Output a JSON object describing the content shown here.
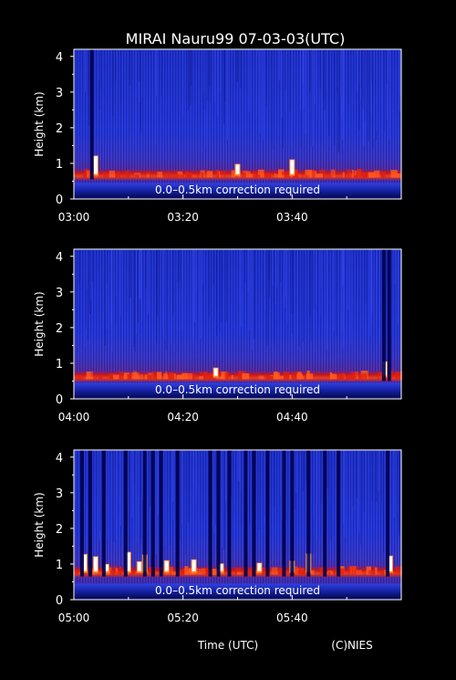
{
  "title": "MIRAI Nauru99 07-03-03(UTC)",
  "footer": {
    "xlabel": "Time (UTC)",
    "credit": "(C)NIES"
  },
  "colors": {
    "background": "#000000",
    "text": "#ffffff",
    "field": "#1a2bd0",
    "surface": "#0a0c70",
    "cloud_low": "#b01a1a",
    "cloud_high": "#ffffff",
    "dropout": "#00004a"
  },
  "chart_data": [
    {
      "type": "heatmap",
      "ylabel": "Height (km)",
      "ylim": [
        0,
        4.2
      ],
      "yticks": [
        "0",
        "1",
        "2",
        "3",
        "4"
      ],
      "xticks": [
        "03:00",
        "03:20",
        "03:40"
      ],
      "xlim": [
        "03:00",
        "04:00"
      ],
      "annotation": "0.0–0.5km correction required",
      "cloud_base_km": 0.65,
      "dropouts_min": [
        3.3
      ],
      "bright_cloud_min": [
        4,
        30,
        40
      ]
    },
    {
      "type": "heatmap",
      "ylabel": "Height (km)",
      "ylim": [
        0,
        4.2
      ],
      "yticks": [
        "0",
        "1",
        "2",
        "3",
        "4"
      ],
      "xticks": [
        "04:00",
        "04:20",
        "04:40"
      ],
      "xlim": [
        "04:00",
        "05:00"
      ],
      "annotation": "0.0–0.5km correction required",
      "cloud_base_km": 0.6,
      "dropouts_min": [
        56.8,
        57.8
      ],
      "bright_cloud_min": [
        26,
        57
      ]
    },
    {
      "type": "heatmap",
      "ylabel": "Height (km)",
      "ylim": [
        0,
        4.2
      ],
      "yticks": [
        "0",
        "1",
        "2",
        "3",
        "4"
      ],
      "xticks": [
        "05:00",
        "05:20",
        "05:40"
      ],
      "xlim": [
        "05:00",
        "06:00"
      ],
      "annotation": "0.0–0.5km correction required",
      "cloud_base_km": 0.75,
      "dropouts_min": [
        1.5,
        3.0,
        5.5,
        9.5,
        13.0,
        14.5,
        16.0,
        19.0,
        25.0,
        26.5,
        28.5,
        31.5,
        33.0,
        35.5,
        38.5,
        40.0,
        43.0,
        46.0,
        48.5,
        57.5
      ],
      "bright_cloud_min": [
        2,
        4,
        6,
        10,
        12,
        13,
        17,
        22,
        27,
        34,
        40,
        43,
        58
      ]
    }
  ]
}
